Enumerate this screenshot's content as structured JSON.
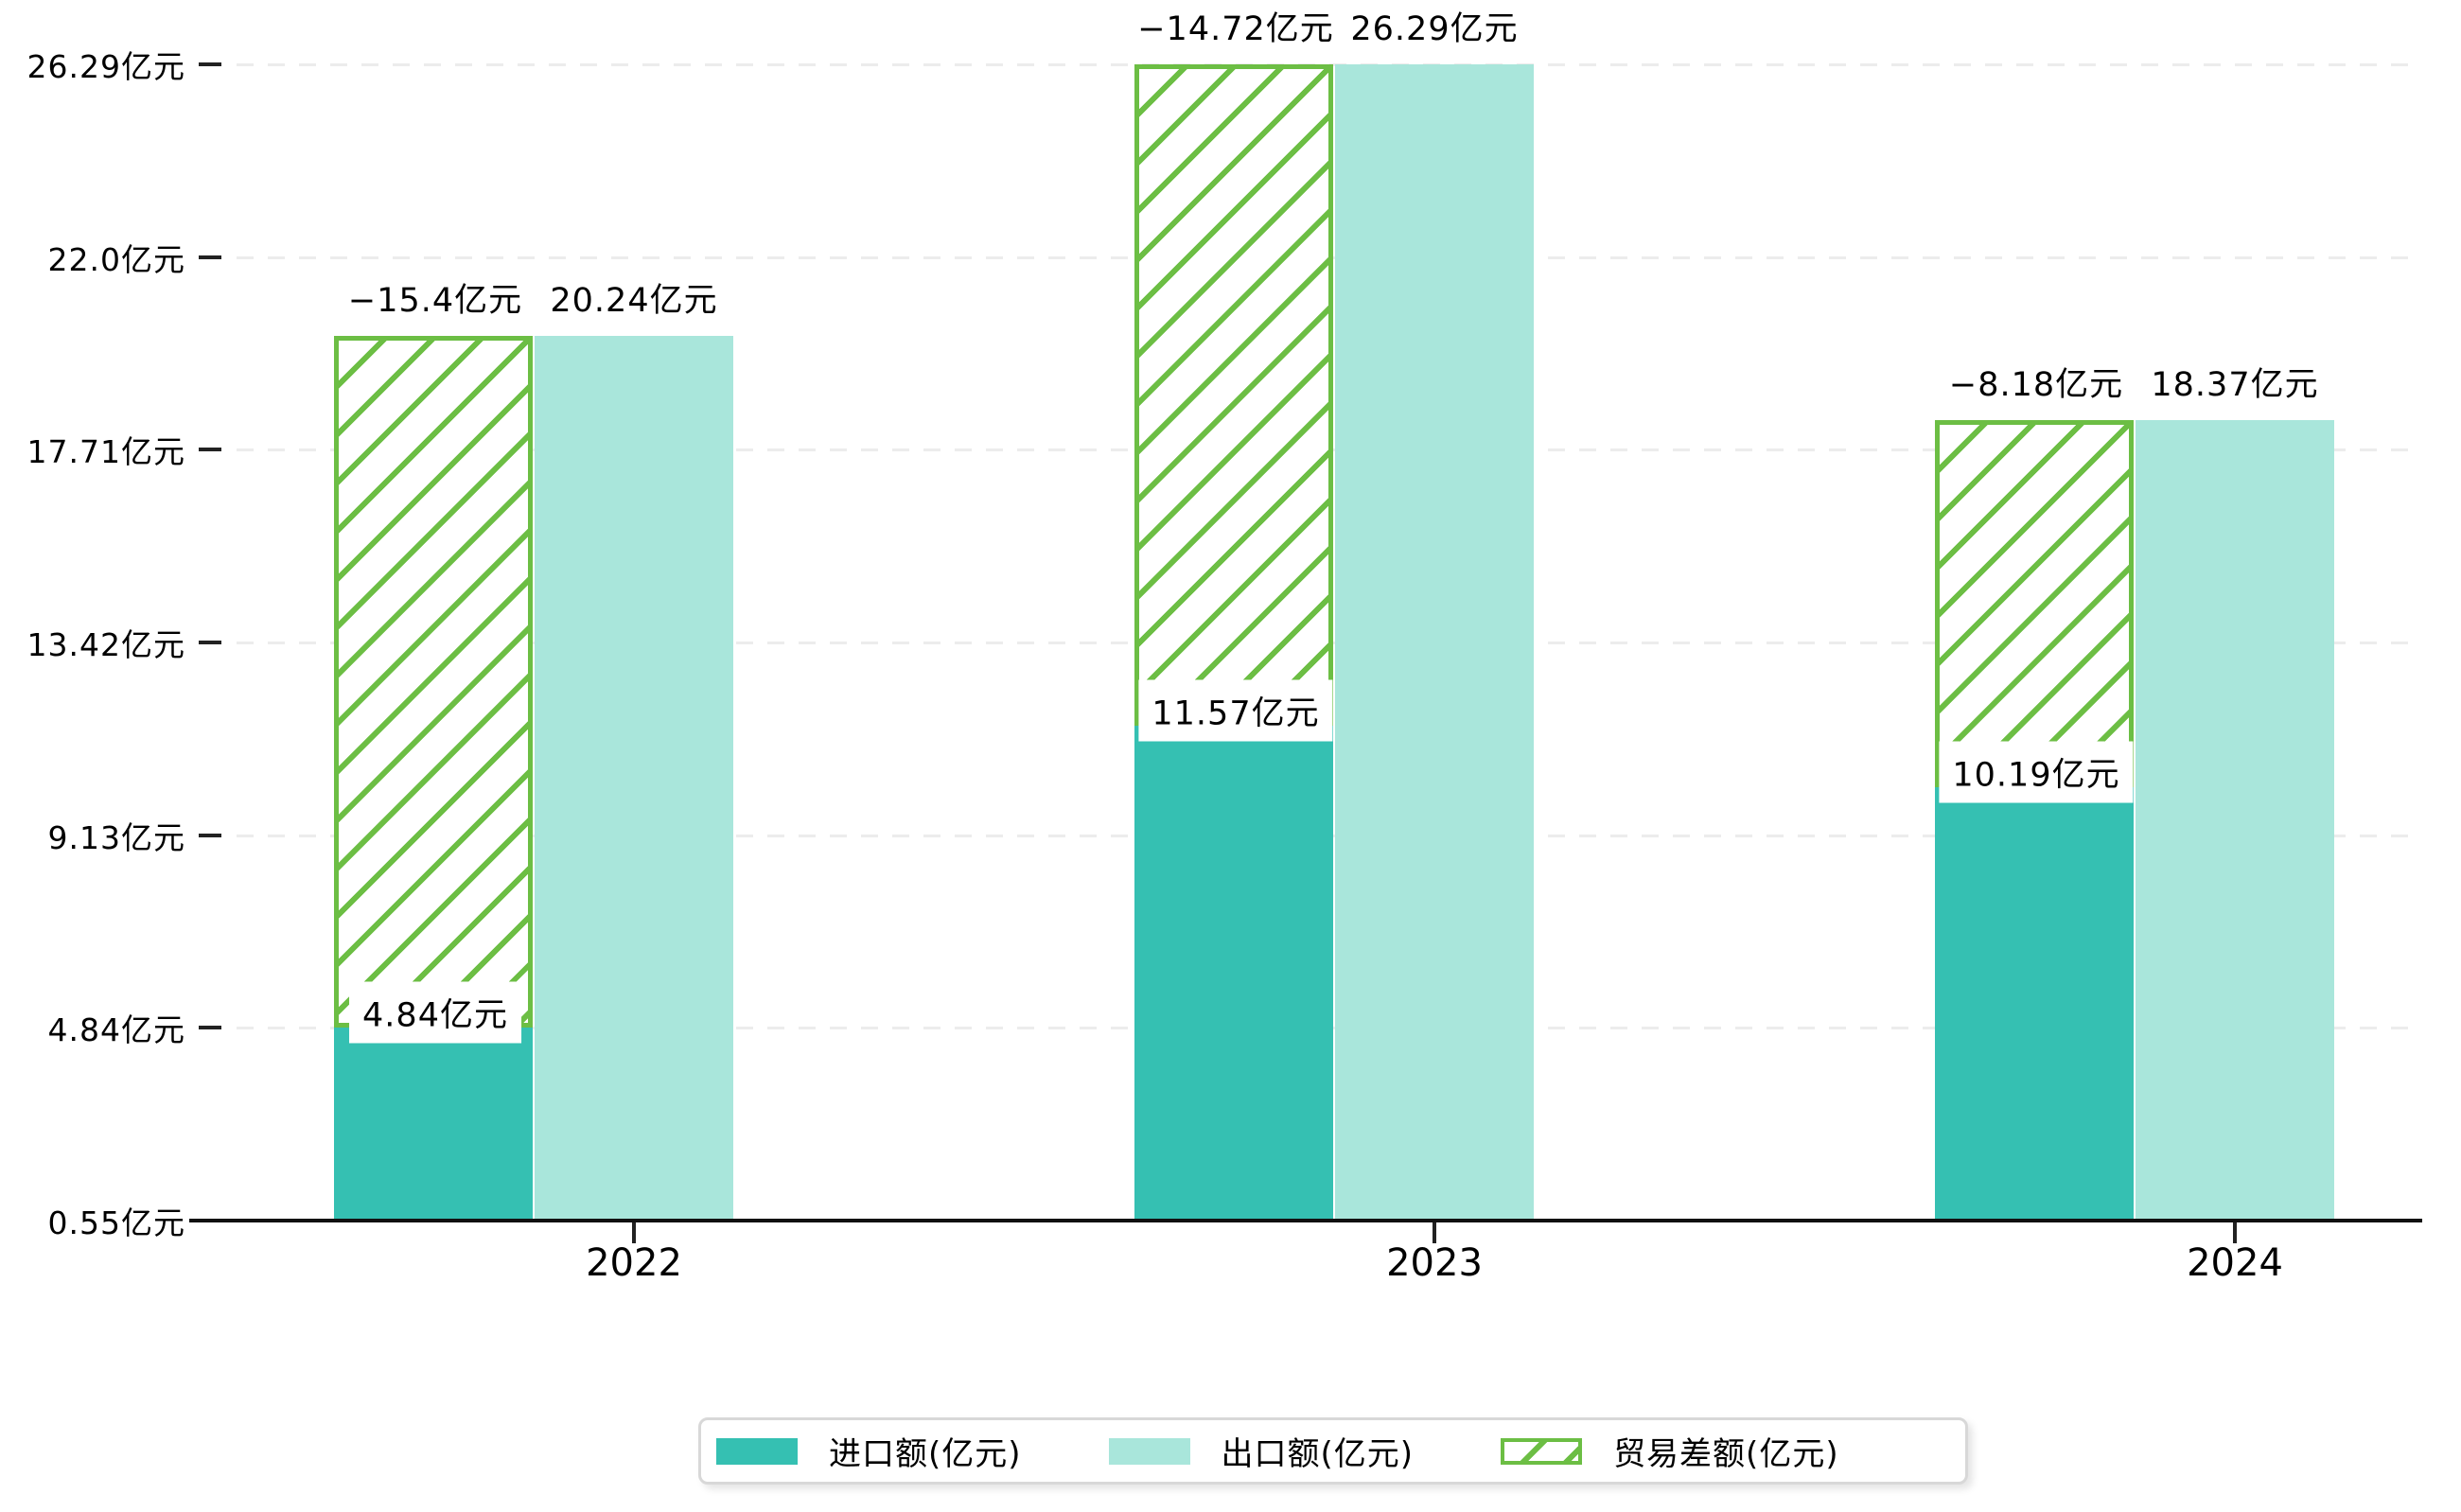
{
  "chart_data": {
    "type": "bar",
    "title": "",
    "xlabel": "",
    "ylabel": "",
    "unit": "亿元",
    "categories": [
      "2022",
      "2023",
      "2024"
    ],
    "series": [
      {
        "name": "进口额(亿元)",
        "values": [
          4.84,
          11.57,
          10.19
        ],
        "color": "#35c0b2",
        "style": "solid"
      },
      {
        "name": "出口额(亿元)",
        "values": [
          20.24,
          26.29,
          18.37
        ],
        "color": "#a9e6db",
        "style": "solid"
      },
      {
        "name": "贸易差额(亿元)",
        "values": [
          -15.4,
          -14.72,
          -8.18
        ],
        "color": "#6cbe44",
        "style": "hatched"
      }
    ],
    "bar_labels": {
      "import": [
        "4.84亿元",
        "11.57亿元",
        "10.19亿元"
      ],
      "export": [
        "20.24亿元",
        "26.29亿元",
        "18.37亿元"
      ],
      "balance": [
        "−15.4亿元",
        "−14.72亿元",
        "−8.18亿元"
      ]
    },
    "y_ticks": [
      "0.55亿元",
      "4.84亿元",
      "9.13亿元",
      "13.42亿元",
      "17.71亿元",
      "22.0亿元",
      "26.29亿元"
    ],
    "y_tick_values": [
      0.55,
      4.84,
      9.13,
      13.42,
      17.71,
      22.0,
      26.29
    ],
    "ylim": [
      0.55,
      26.29
    ],
    "grid": "horizontal dashed",
    "legend_position": "bottom",
    "colors": {
      "import": "#35c0b2",
      "export": "#a9e6db",
      "balance_hatch": "#6cbe44",
      "gridline": "#ececec",
      "axis": "#111111",
      "legend_border": "#d8d8d8"
    }
  },
  "legend": {
    "items": [
      {
        "label": "进口额(亿元)"
      },
      {
        "label": "出口额(亿元)"
      },
      {
        "label": "贸易差额(亿元)"
      }
    ]
  }
}
